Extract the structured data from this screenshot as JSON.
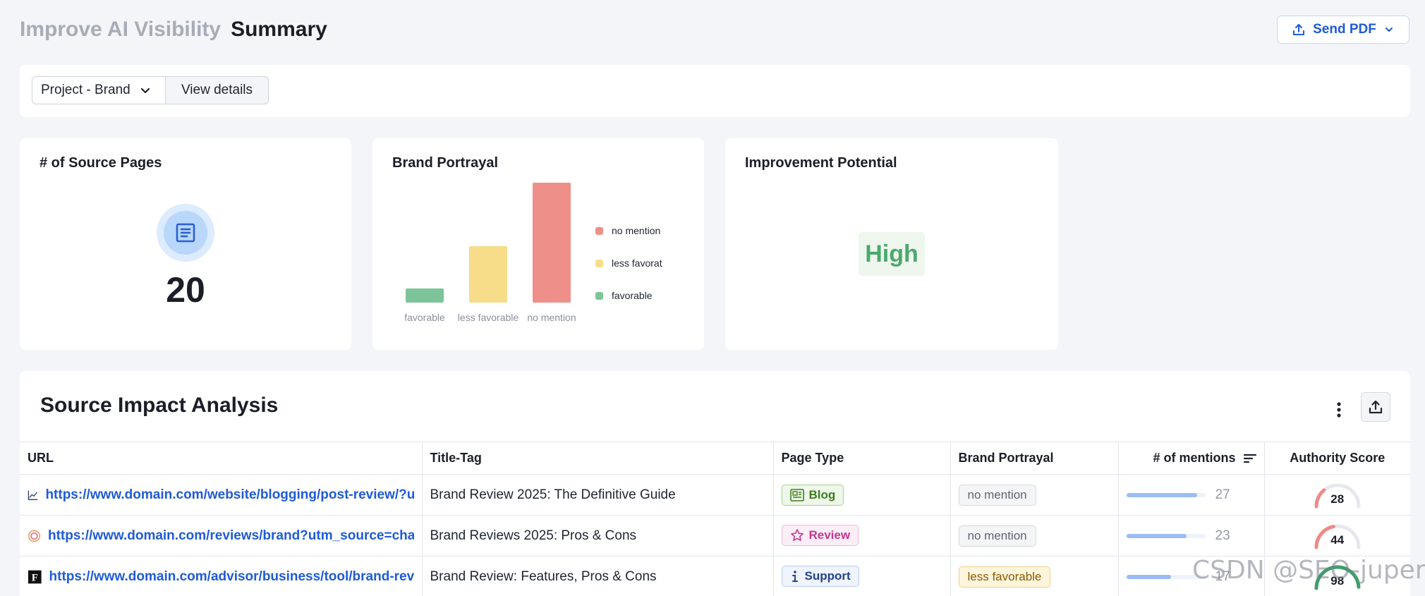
{
  "header": {
    "breadcrumb": "Improve AI Visibility",
    "title": "Summary"
  },
  "send_pdf": {
    "label": "Send PDF",
    "icon": "upload-icon"
  },
  "filters": {
    "project_select": "Project - Brand",
    "view_details": "View details"
  },
  "source_pages": {
    "title": "# of Source Pages",
    "count": "20",
    "icon": "document-icon"
  },
  "brand_portrayal": {
    "title": "Brand Portrayal"
  },
  "chart_data": {
    "type": "bar",
    "title": "Brand Portrayal",
    "categories": [
      "favorable",
      "less favorable",
      "no mention"
    ],
    "values": [
      2,
      8,
      17
    ],
    "colors": [
      "#7dc49a",
      "#f7dc8a",
      "#ef8f8a"
    ],
    "legend": [
      "no mention",
      "less favorat",
      "favorable"
    ],
    "legend_position": "right",
    "ylim": [
      0,
      17
    ],
    "grid": false
  },
  "improvement": {
    "title": "Improvement Potential",
    "value": "High"
  },
  "table": {
    "title": "Source Impact Analysis",
    "columns": [
      "URL",
      "Title-Tag",
      "Page Type",
      "Brand Portrayal",
      "# of mentions",
      "Authority Score"
    ],
    "max_mentions": 30,
    "rows": [
      {
        "url": "https://www.domain.com/website/blogging/post-review/?utm_source=chatgpt.com",
        "url_icon": "trend-chart-icon",
        "title_tag": "Brand Review 2025: The Definitive Guide",
        "page_type": "Blog",
        "page_type_icon": "newspaper-icon",
        "portrayal": "no mention",
        "mentions": "27",
        "authority": "28",
        "authority_color": "#ee8a86"
      },
      {
        "url": "https://www.domain.com/reviews/brand?utm_source=chatgpt.com",
        "url_icon": "site-favicon-icon",
        "title_tag": "Brand Reviews 2025: Pros & Cons",
        "page_type": "Review",
        "page_type_icon": "star-icon",
        "portrayal": "no mention",
        "mentions": "23",
        "authority": "44",
        "authority_color": "#ee8a86"
      },
      {
        "url": "https://www.domain.com/advisor/business/tool/brand-review/",
        "url_icon": "forbes-favicon-icon",
        "title_tag": "Brand Review: Features, Pros & Cons",
        "page_type": "Support",
        "page_type_icon": "info-icon",
        "portrayal": "less favorable",
        "mentions": "17",
        "authority": "98",
        "authority_color": "#3f9e6a"
      }
    ]
  },
  "watermark": "CSDN @SEO-juper"
}
